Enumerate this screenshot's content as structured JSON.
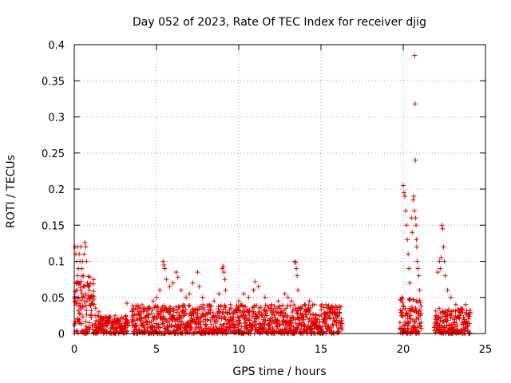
{
  "chart_data": {
    "type": "scatter",
    "title": "Day 052 of 2023, Rate Of TEC Index for receiver djig",
    "xlabel": "GPS time / hours",
    "ylabel": "ROTI / TECUs",
    "xlim": [
      0,
      25
    ],
    "ylim": [
      0,
      0.4
    ],
    "x_ticks": [
      0,
      5,
      10,
      15,
      20,
      25
    ],
    "x_tick_labels": [
      "0",
      "5",
      "10",
      "15",
      "20",
      "25"
    ],
    "y_ticks": [
      0,
      0.05,
      0.1,
      0.15,
      0.2,
      0.25,
      0.3,
      0.35,
      0.4
    ],
    "y_tick_labels": [
      "0",
      "0.05",
      "0.1",
      "0.15",
      "0.2",
      "0.25",
      "0.3",
      "0.35",
      "0.4"
    ],
    "grid": true,
    "marker": "plus",
    "color": "#e00000",
    "series": [
      {
        "name": "ROTI",
        "points": [
          [
            0.05,
            0.12
          ],
          [
            0.1,
            0.11
          ],
          [
            0.15,
            0.1
          ],
          [
            0.2,
            0.12
          ],
          [
            0.25,
            0.09
          ],
          [
            0.3,
            0.11
          ],
          [
            0.35,
            0.1
          ],
          [
            0.4,
            0.12
          ],
          [
            0.45,
            0.09
          ],
          [
            0.5,
            0.1
          ],
          [
            0.6,
            0.11
          ],
          [
            0.65,
            0.126
          ],
          [
            0.7,
            0.12
          ],
          [
            0.75,
            0.1
          ],
          [
            0.55,
            0.08
          ],
          [
            0.8,
            0.07
          ],
          [
            0.9,
            0.06
          ],
          [
            1.0,
            0.05
          ],
          [
            1.1,
            0.045
          ],
          [
            0.2,
            0.08
          ],
          [
            0.3,
            0.07
          ],
          [
            0.4,
            0.06
          ],
          [
            0.5,
            0.05
          ],
          [
            0.6,
            0.065
          ],
          [
            0.7,
            0.055
          ],
          [
            0.15,
            0.06
          ],
          [
            0.25,
            0.05
          ],
          [
            1.2,
            0.04
          ],
          [
            1.3,
            0.035
          ],
          [
            1.5,
            0.03
          ],
          [
            3.2,
            0.042
          ],
          [
            3.6,
            0.035
          ],
          [
            4.0,
            0.03
          ],
          [
            4.3,
            0.035
          ],
          [
            4.8,
            0.045
          ],
          [
            5.0,
            0.05
          ],
          [
            5.2,
            0.06
          ],
          [
            5.4,
            0.1
          ],
          [
            5.45,
            0.095
          ],
          [
            5.5,
            0.09
          ],
          [
            5.6,
            0.075
          ],
          [
            5.8,
            0.065
          ],
          [
            6.0,
            0.07
          ],
          [
            6.2,
            0.085
          ],
          [
            6.3,
            0.078
          ],
          [
            6.5,
            0.06
          ],
          [
            6.8,
            0.05
          ],
          [
            7.0,
            0.055
          ],
          [
            7.2,
            0.07
          ],
          [
            7.5,
            0.085
          ],
          [
            7.6,
            0.065
          ],
          [
            7.8,
            0.05
          ],
          [
            8.2,
            0.04
          ],
          [
            8.5,
            0.045
          ],
          [
            8.8,
            0.055
          ],
          [
            9.0,
            0.09
          ],
          [
            9.05,
            0.093
          ],
          [
            9.1,
            0.085
          ],
          [
            9.15,
            0.075
          ],
          [
            9.2,
            0.06
          ],
          [
            9.5,
            0.04
          ],
          [
            10.0,
            0.045
          ],
          [
            10.3,
            0.055
          ],
          [
            10.6,
            0.05
          ],
          [
            10.9,
            0.06
          ],
          [
            11.0,
            0.072
          ],
          [
            11.2,
            0.065
          ],
          [
            11.6,
            0.05
          ],
          [
            12.0,
            0.04
          ],
          [
            12.4,
            0.045
          ],
          [
            12.8,
            0.055
          ],
          [
            13.0,
            0.05
          ],
          [
            13.2,
            0.045
          ],
          [
            13.4,
            0.1
          ],
          [
            13.45,
            0.098
          ],
          [
            13.5,
            0.09
          ],
          [
            13.55,
            0.08
          ],
          [
            13.6,
            0.06
          ],
          [
            14.0,
            0.04
          ],
          [
            14.3,
            0.045
          ],
          [
            14.6,
            0.04
          ],
          [
            15.0,
            0.038
          ],
          [
            15.3,
            0.04
          ],
          [
            15.6,
            0.035
          ],
          [
            16.0,
            0.025
          ],
          [
            19.9,
            0.05
          ],
          [
            20.0,
            0.205
          ],
          [
            20.05,
            0.195
          ],
          [
            20.1,
            0.19
          ],
          [
            20.15,
            0.17
          ],
          [
            20.2,
            0.15
          ],
          [
            20.25,
            0.13
          ],
          [
            20.3,
            0.11
          ],
          [
            20.35,
            0.09
          ],
          [
            20.4,
            0.07
          ],
          [
            20.5,
            0.16
          ],
          [
            20.55,
            0.14
          ],
          [
            20.6,
            0.185
          ],
          [
            20.65,
            0.19
          ],
          [
            20.68,
            0.17
          ],
          [
            20.7,
            0.385
          ],
          [
            20.72,
            0.318
          ],
          [
            20.74,
            0.24
          ],
          [
            20.76,
            0.16
          ],
          [
            20.78,
            0.15
          ],
          [
            20.8,
            0.13
          ],
          [
            20.82,
            0.12
          ],
          [
            20.85,
            0.1
          ],
          [
            20.9,
            0.09
          ],
          [
            20.95,
            0.08
          ],
          [
            21.0,
            0.06
          ],
          [
            22.1,
            0.085
          ],
          [
            22.2,
            0.1
          ],
          [
            22.25,
            0.09
          ],
          [
            22.3,
            0.105
          ],
          [
            22.35,
            0.15
          ],
          [
            22.4,
            0.145
          ],
          [
            22.45,
            0.12
          ],
          [
            22.5,
            0.1
          ],
          [
            22.55,
            0.08
          ],
          [
            22.7,
            0.06
          ],
          [
            22.9,
            0.05
          ],
          [
            23.2,
            0.04
          ],
          [
            23.5,
            0.035
          ],
          [
            23.8,
            0.04
          ]
        ]
      }
    ],
    "dense_band_segments": [
      {
        "x_start": 0.0,
        "x_end": 1.2,
        "y_min": 0.0,
        "y_max": 0.08
      },
      {
        "x_start": 1.2,
        "x_end": 3.3,
        "y_min": 0.0,
        "y_max": 0.025
      },
      {
        "x_start": 3.5,
        "x_end": 16.3,
        "y_min": 0.0,
        "y_max": 0.04
      },
      {
        "x_start": 19.8,
        "x_end": 21.1,
        "y_min": 0.0,
        "y_max": 0.05
      },
      {
        "x_start": 21.9,
        "x_end": 24.1,
        "y_min": 0.0,
        "y_max": 0.035
      }
    ]
  }
}
